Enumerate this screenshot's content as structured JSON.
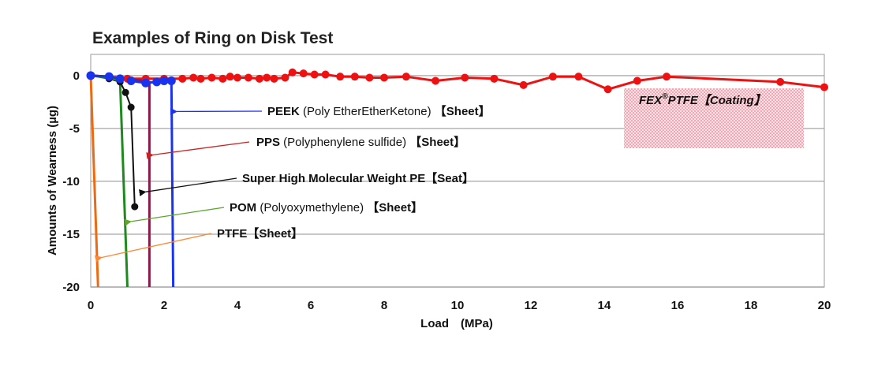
{
  "chart_data": {
    "type": "line",
    "title": "Examples of Ring on Disk Test",
    "xlabel": "Load　(MPa)",
    "ylabel": "Amounts of Wearness (µg)",
    "xlim": [
      0,
      20
    ],
    "ylim": [
      -20,
      2
    ],
    "x_ticks": [
      0,
      2,
      4,
      6,
      8,
      10,
      12,
      14,
      16,
      18,
      20
    ],
    "y_ticks": [
      0,
      -5,
      -10,
      -15,
      -20
    ],
    "grid": "horizontal",
    "series": [
      {
        "key": "fex",
        "color": "#ee1111",
        "points": [
          [
            0,
            0
          ],
          [
            0.5,
            -0.1
          ],
          [
            1.0,
            -0.3
          ],
          [
            1.5,
            -0.3
          ],
          [
            2.0,
            -0.3
          ],
          [
            2.5,
            -0.3
          ],
          [
            2.8,
            -0.2
          ],
          [
            3.0,
            -0.3
          ],
          [
            3.3,
            -0.2
          ],
          [
            3.6,
            -0.3
          ],
          [
            3.8,
            -0.1
          ],
          [
            4.0,
            -0.2
          ],
          [
            4.3,
            -0.2
          ],
          [
            4.6,
            -0.3
          ],
          [
            4.8,
            -0.2
          ],
          [
            5.0,
            -0.3
          ],
          [
            5.3,
            -0.2
          ],
          [
            5.5,
            0.3
          ],
          [
            5.8,
            0.2
          ],
          [
            6.1,
            0.1
          ],
          [
            6.4,
            0.1
          ],
          [
            6.8,
            -0.1
          ],
          [
            7.2,
            -0.1
          ],
          [
            7.6,
            -0.2
          ],
          [
            8.0,
            -0.2
          ],
          [
            8.6,
            -0.1
          ],
          [
            9.4,
            -0.5
          ],
          [
            10.2,
            -0.2
          ],
          [
            11.0,
            -0.3
          ],
          [
            11.8,
            -0.9
          ],
          [
            12.6,
            -0.1
          ],
          [
            13.3,
            -0.1
          ],
          [
            14.1,
            -1.3
          ],
          [
            14.9,
            -0.5
          ],
          [
            15.7,
            -0.1
          ],
          [
            18.8,
            -0.6
          ],
          [
            20.0,
            -1.1
          ]
        ]
      },
      {
        "key": "peek",
        "color": "#1a33ee",
        "points": [
          [
            0,
            0
          ],
          [
            0.5,
            -0.1
          ],
          [
            0.8,
            -0.3
          ],
          [
            1.1,
            -0.5
          ],
          [
            1.5,
            -0.7
          ],
          [
            1.8,
            -0.6
          ],
          [
            2.0,
            -0.5
          ],
          [
            2.2,
            -0.5
          ],
          [
            2.25,
            -20
          ]
        ]
      },
      {
        "key": "pps",
        "color": "#8b1a4a",
        "points": [
          [
            0,
            0
          ],
          [
            0.5,
            -0.1
          ],
          [
            1.0,
            -0.3
          ],
          [
            1.4,
            -0.5
          ],
          [
            1.6,
            -0.6
          ],
          [
            1.6,
            -20
          ]
        ]
      },
      {
        "key": "upe",
        "color": "#111111",
        "points": [
          [
            0,
            0
          ],
          [
            0.5,
            -0.3
          ],
          [
            0.8,
            -0.6
          ],
          [
            0.95,
            -1.6
          ],
          [
            1.1,
            -3.0
          ],
          [
            1.2,
            -12.4
          ]
        ]
      },
      {
        "key": "pom",
        "color": "#1e8a1e",
        "points": [
          [
            0,
            0
          ],
          [
            0.5,
            -0.2
          ],
          [
            0.8,
            -0.5
          ],
          [
            1.0,
            -20
          ]
        ]
      },
      {
        "key": "ptfe",
        "color": "#ee6a10",
        "points": [
          [
            0,
            0
          ],
          [
            0.2,
            -20
          ]
        ]
      }
    ],
    "annotations": [
      {
        "key": "peek",
        "bold": "PEEK",
        "normal": " (Poly EtherEtherKetone) ",
        "bold2": "【Sheet】",
        "arrow_to": [
          2.35,
          -3.4
        ],
        "color": "#1a33ee"
      },
      {
        "key": "pps",
        "bold": "PPS",
        "normal": " (Polyphenylene sulfide) ",
        "bold2": "【Sheet】",
        "arrow_to": [
          1.7,
          -7.5
        ],
        "color": "#cc2222"
      },
      {
        "key": "upe",
        "bold": "Super High Molecular Weight PE【Seat】",
        "normal": "",
        "bold2": "",
        "arrow_to": [
          1.5,
          -11.0
        ],
        "color": "#111111"
      },
      {
        "key": "pom",
        "bold": "POM",
        "normal": " (Polyoxymethylene) ",
        "bold2": "【Sheet】",
        "arrow_to": [
          1.1,
          -13.8
        ],
        "color": "#5aa82a"
      },
      {
        "key": "ptfe",
        "bold": "PTFE【Sheet】",
        "normal": "",
        "bold2": "",
        "arrow_to": [
          0.3,
          -17.2
        ],
        "color": "#ff8833"
      }
    ],
    "coating_label": {
      "main": "FEX",
      "sup": "®",
      "rest": "PTFE【Coating】"
    }
  }
}
